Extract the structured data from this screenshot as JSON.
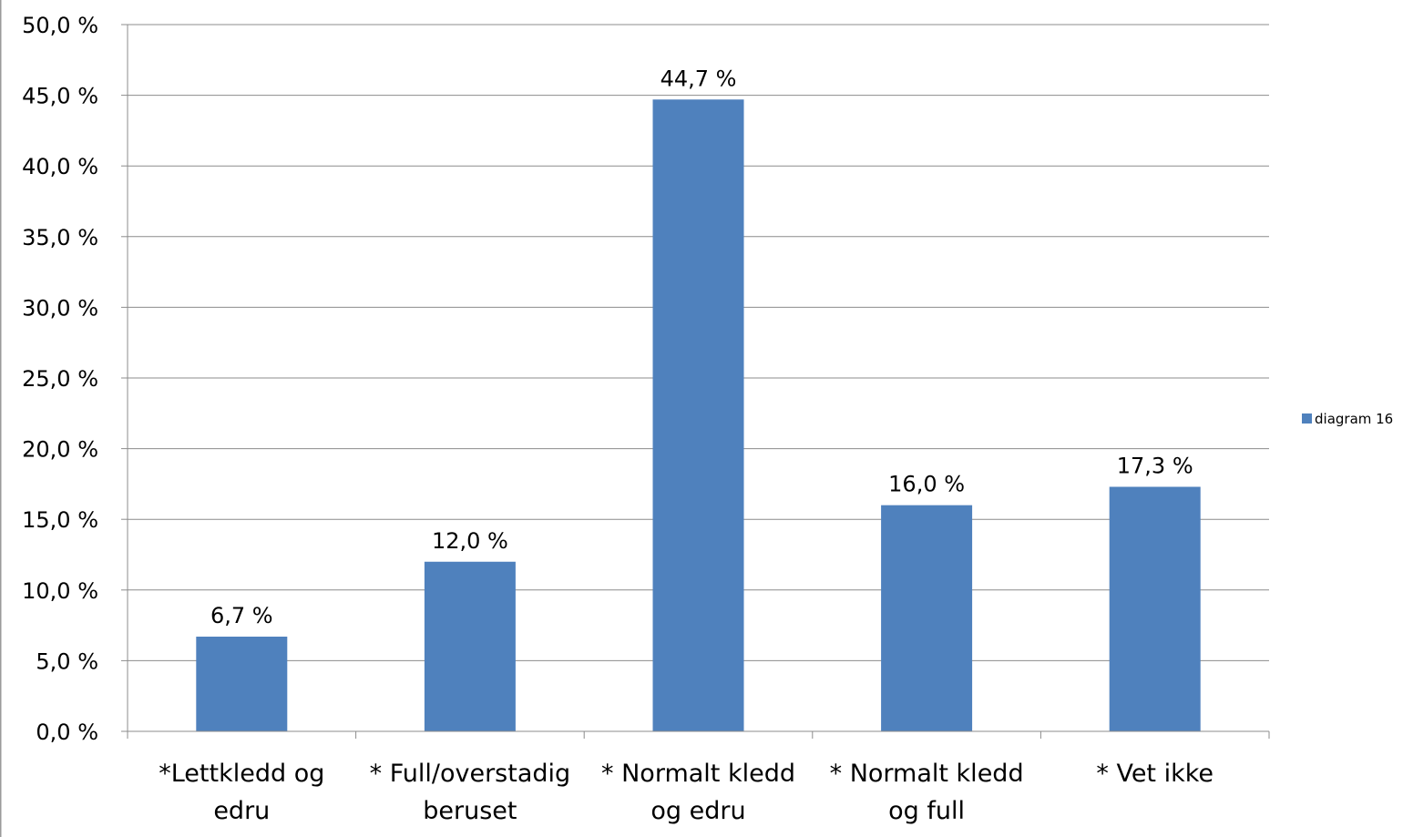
{
  "chart_data": {
    "type": "bar",
    "categories": [
      [
        "*Lettkledd og",
        "edru"
      ],
      [
        "* Full/overstadig",
        "beruset"
      ],
      [
        "* Normalt kledd",
        "og edru"
      ],
      [
        "* Normalt kledd",
        "og full"
      ],
      [
        "* Vet ikke"
      ]
    ],
    "series": [
      {
        "name": "diagram 16",
        "values": [
          6.7,
          12.0,
          44.7,
          16.0,
          17.3
        ],
        "labels": [
          "6,7 %",
          "12,0 %",
          "44,7 %",
          "16,0 %",
          "17,3 %"
        ],
        "color": "#4F81BD"
      }
    ],
    "y_ticks": [
      {
        "value": 0,
        "label": "0,0 %"
      },
      {
        "value": 5,
        "label": "5,0 %"
      },
      {
        "value": 10,
        "label": "10,0 %"
      },
      {
        "value": 15,
        "label": "15,0 %"
      },
      {
        "value": 20,
        "label": "20,0 %"
      },
      {
        "value": 25,
        "label": "25,0 %"
      },
      {
        "value": 30,
        "label": "30,0 %"
      },
      {
        "value": 35,
        "label": "35,0 %"
      },
      {
        "value": 40,
        "label": "40,0 %"
      },
      {
        "value": 45,
        "label": "45,0 %"
      },
      {
        "value": 50,
        "label": "50,0 %"
      }
    ],
    "ylim": [
      0,
      50
    ],
    "grid": true,
    "legend": "right",
    "title": "",
    "xlabel": "",
    "ylabel": ""
  }
}
